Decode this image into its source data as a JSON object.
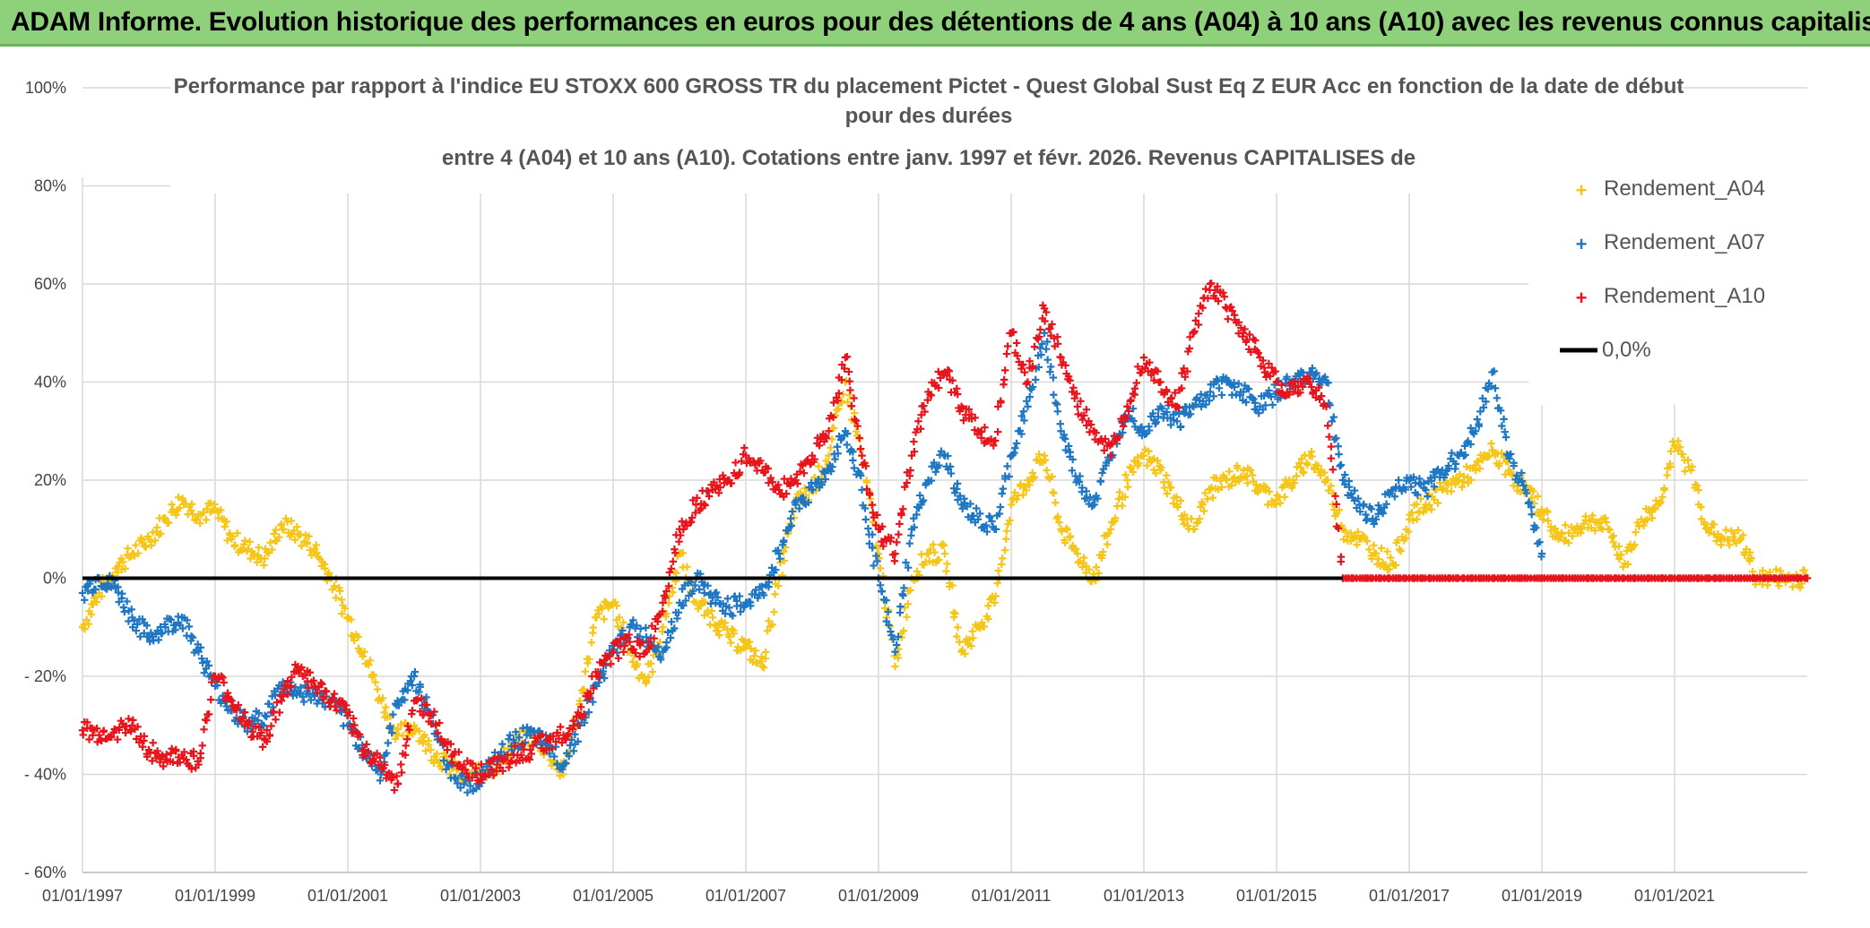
{
  "header": {
    "title": "ADAM Informe. Evolution historique des performances en euros pour des détentions de 4 ans (A04) à 10 ans (A10) avec les revenus connus capitalisés"
  },
  "colors": {
    "banner": "#8fd17a",
    "a04": "#f5c518",
    "a07": "#1f77c4",
    "a10": "#e8141c",
    "zero": "#000000",
    "grid": "#d9d9d9"
  },
  "chart_data": {
    "type": "scatter",
    "title_lines": [
      "Performance par rapport à l'indice EU STOXX 600 GROSS TR  du placement Pictet - Quest Global Sust Eq Z EUR Acc en fonction de la date de début",
      "pour des durées",
      "entre 4 (A04) et 10 ans (A10). Cotations entre janv. 1997 et févr. 2026. Revenus CAPITALISES de"
    ],
    "x_ticks": [
      "01/01/1997",
      "01/01/1999",
      "01/01/2001",
      "01/01/2003",
      "01/01/2005",
      "01/01/2007",
      "01/01/2009",
      "01/01/2011",
      "01/01/2013",
      "01/01/2015",
      "01/01/2017",
      "01/01/2019",
      "01/01/2021"
    ],
    "y_ticks": [
      "100%",
      "80%",
      "60%",
      "40%",
      "20%",
      "0%",
      "- 20%",
      "- 40%",
      "- 60%"
    ],
    "xlim": [
      1997.0,
      2023.0
    ],
    "ylim": [
      -60,
      100
    ],
    "legend": [
      "Rendement_A04",
      "Rendement_A07",
      "Rendement_A10",
      "0,0%"
    ],
    "series": [
      {
        "name": "Rendement_A04",
        "x": [
          1997.0,
          1997.25,
          1997.5,
          1997.75,
          1998.0,
          1998.25,
          1998.5,
          1998.75,
          1999.0,
          1999.25,
          1999.5,
          1999.75,
          2000.0,
          2000.25,
          2000.5,
          2000.75,
          2001.0,
          2001.25,
          2001.5,
          2001.75,
          2002.0,
          2002.25,
          2002.5,
          2002.75,
          2003.0,
          2003.25,
          2003.5,
          2003.75,
          2004.0,
          2004.25,
          2004.5,
          2004.75,
          2005.0,
          2005.25,
          2005.5,
          2005.75,
          2006.0,
          2006.25,
          2006.5,
          2006.75,
          2007.0,
          2007.25,
          2007.5,
          2007.75,
          2008.0,
          2008.25,
          2008.5,
          2008.75,
          2009.0,
          2009.25,
          2009.5,
          2009.75,
          2010.0,
          2010.25,
          2010.5,
          2010.75,
          2011.0,
          2011.25,
          2011.5,
          2011.75,
          2012.0,
          2012.25,
          2012.5,
          2012.75,
          2013.0,
          2013.25,
          2013.5,
          2013.75,
          2014.0,
          2014.25,
          2014.5,
          2014.75,
          2015.0,
          2015.25,
          2015.5,
          2015.75,
          2016.0,
          2016.25,
          2016.5,
          2016.75,
          2017.0,
          2017.25,
          2017.5,
          2017.75,
          2018.0,
          2018.25,
          2018.5,
          2018.75,
          2019.0,
          2019.25,
          2019.5,
          2019.75,
          2020.0,
          2020.25,
          2020.5,
          2020.75,
          2021.0,
          2021.25,
          2021.5,
          2021.75,
          2022.0,
          2022.25,
          2022.5,
          2022.75,
          2023.0
        ],
        "values": [
          -10,
          -3,
          2,
          5,
          8,
          12,
          16,
          13,
          14,
          8,
          6,
          4,
          11,
          9,
          6,
          0,
          -8,
          -15,
          -25,
          -32,
          -30,
          -35,
          -38,
          -41,
          -40,
          -38,
          -34,
          -32,
          -35,
          -40,
          -25,
          -8,
          -5,
          -15,
          -21,
          -10,
          5,
          -5,
          -8,
          -12,
          -14,
          -18,
          0,
          15,
          18,
          25,
          40,
          25,
          5,
          -18,
          0,
          5,
          5,
          -15,
          -10,
          -5,
          15,
          20,
          25,
          10,
          5,
          0,
          10,
          20,
          25,
          22,
          15,
          10,
          18,
          20,
          22,
          18,
          16,
          20,
          25,
          20,
          10,
          8,
          5,
          3,
          12,
          15,
          18,
          20,
          22,
          26,
          22,
          18,
          14,
          8,
          10,
          12,
          10,
          3,
          12,
          15,
          27,
          22,
          10,
          8,
          8,
          0,
          0,
          0,
          0
        ]
      },
      {
        "name": "Rendement_A07",
        "x": [
          1997.0,
          1997.25,
          1997.5,
          1997.75,
          1998.0,
          1998.25,
          1998.5,
          1998.75,
          1999.0,
          1999.25,
          1999.5,
          1999.75,
          2000.0,
          2000.25,
          2000.5,
          2000.75,
          2001.0,
          2001.25,
          2001.5,
          2001.75,
          2002.0,
          2002.25,
          2002.5,
          2002.75,
          2003.0,
          2003.25,
          2003.5,
          2003.75,
          2004.0,
          2004.25,
          2004.5,
          2004.75,
          2005.0,
          2005.25,
          2005.5,
          2005.75,
          2006.0,
          2006.25,
          2006.5,
          2006.75,
          2007.0,
          2007.25,
          2007.5,
          2007.75,
          2008.0,
          2008.25,
          2008.5,
          2008.75,
          2009.0,
          2009.25,
          2009.5,
          2009.75,
          2010.0,
          2010.25,
          2010.5,
          2010.75,
          2011.0,
          2011.25,
          2011.5,
          2011.75,
          2012.0,
          2012.25,
          2012.5,
          2012.75,
          2013.0,
          2013.25,
          2013.5,
          2013.75,
          2014.0,
          2014.25,
          2014.5,
          2014.75,
          2015.0,
          2015.25,
          2015.5,
          2015.75,
          2016.0,
          2016.25,
          2016.5,
          2016.75,
          2017.0,
          2017.25,
          2017.5,
          2017.75,
          2018.0,
          2018.25,
          2018.5,
          2018.75,
          2019.0
        ],
        "values": [
          -3,
          0,
          -2,
          -8,
          -12,
          -10,
          -8,
          -15,
          -22,
          -27,
          -30,
          -28,
          -22,
          -23,
          -24,
          -25,
          -30,
          -35,
          -40,
          -25,
          -20,
          -28,
          -38,
          -42,
          -41,
          -37,
          -33,
          -32,
          -34,
          -38,
          -30,
          -22,
          -15,
          -10,
          -12,
          -15,
          -5,
          0,
          -4,
          -6,
          -5,
          -3,
          5,
          15,
          18,
          22,
          30,
          18,
          0,
          -15,
          10,
          20,
          25,
          15,
          12,
          10,
          25,
          35,
          50,
          30,
          20,
          15,
          25,
          35,
          30,
          35,
          32,
          35,
          38,
          40,
          38,
          35,
          38,
          40,
          42,
          40,
          20,
          15,
          12,
          18,
          20,
          18,
          22,
          25,
          30,
          42,
          25,
          18,
          5
        ]
      },
      {
        "name": "Rendement_A10",
        "x": [
          1997.0,
          1997.25,
          1997.5,
          1997.75,
          1998.0,
          1998.25,
          1998.5,
          1998.75,
          1999.0,
          1999.25,
          1999.5,
          1999.75,
          2000.0,
          2000.25,
          2000.5,
          2000.75,
          2001.0,
          2001.25,
          2001.5,
          2001.75,
          2002.0,
          2002.25,
          2002.5,
          2002.75,
          2003.0,
          2003.25,
          2003.5,
          2003.75,
          2004.0,
          2004.25,
          2004.5,
          2004.75,
          2005.0,
          2005.25,
          2005.5,
          2005.75,
          2006.0,
          2006.25,
          2006.5,
          2006.75,
          2007.0,
          2007.25,
          2007.5,
          2007.75,
          2008.0,
          2008.25,
          2008.5,
          2008.75,
          2009.0,
          2009.25,
          2009.5,
          2009.75,
          2010.0,
          2010.25,
          2010.5,
          2010.75,
          2011.0,
          2011.25,
          2011.5,
          2011.75,
          2012.0,
          2012.25,
          2012.5,
          2012.75,
          2013.0,
          2013.25,
          2013.5,
          2013.75,
          2014.0,
          2014.25,
          2014.5,
          2014.75,
          2015.0,
          2015.25,
          2015.5,
          2015.75,
          2016.0
        ],
        "values": [
          -31,
          -32,
          -31,
          -30,
          -35,
          -37,
          -36,
          -38,
          -20,
          -25,
          -30,
          -33,
          -25,
          -18,
          -22,
          -25,
          -28,
          -35,
          -38,
          -42,
          -25,
          -28,
          -35,
          -38,
          -40,
          -38,
          -36,
          -35,
          -33,
          -32,
          -28,
          -20,
          -15,
          -13,
          -15,
          -5,
          10,
          15,
          18,
          20,
          25,
          22,
          18,
          20,
          25,
          30,
          45,
          25,
          10,
          5,
          25,
          38,
          42,
          35,
          30,
          28,
          50,
          40,
          55,
          45,
          35,
          30,
          25,
          35,
          45,
          40,
          35,
          50,
          60,
          55,
          50,
          45,
          40,
          38,
          40,
          35,
          0
        ]
      },
      {
        "name": "Rendement_A10",
        "x": [
          2016.0,
          2016.5,
          2017.0,
          2017.5,
          2018.0,
          2018.5,
          2019.0,
          2019.5,
          2020.0,
          2020.5,
          2021.0,
          2021.5,
          2022.0,
          2022.5,
          2023.0
        ],
        "values": [
          0,
          0,
          0,
          0,
          0,
          0,
          0,
          0,
          0,
          0,
          0,
          0,
          0,
          0,
          0
        ]
      },
      {
        "name": "0,0%",
        "x": [
          1997.0,
          2023.0
        ],
        "values": [
          0,
          0
        ]
      }
    ]
  }
}
